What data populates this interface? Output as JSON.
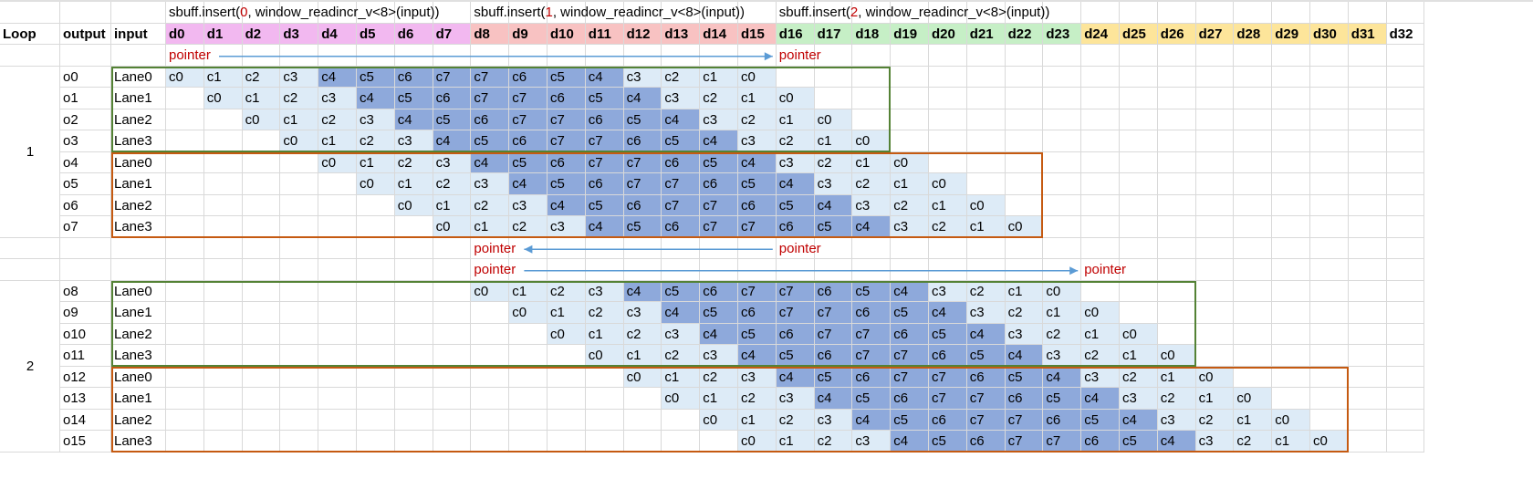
{
  "headers": {
    "loop": "Loop",
    "output": "output",
    "input": "input"
  },
  "columns": [
    "d0",
    "d1",
    "d2",
    "d3",
    "d4",
    "d5",
    "d6",
    "d7",
    "d8",
    "d9",
    "d10",
    "d11",
    "d12",
    "d13",
    "d14",
    "d15",
    "d16",
    "d17",
    "d18",
    "d19",
    "d20",
    "d21",
    "d22",
    "d23",
    "d24",
    "d25",
    "d26",
    "d27",
    "d28",
    "d29",
    "d30",
    "d31",
    "d32"
  ],
  "inserts": [
    {
      "prefix": "sbuff.insert(",
      "index": "0",
      "suffix": ", window_readincr_v<8>(input))",
      "start_col": 0
    },
    {
      "prefix": "sbuff.insert(",
      "index": "1",
      "suffix": ", window_readincr_v<8>(input))",
      "start_col": 8
    },
    {
      "prefix": "sbuff.insert(",
      "index": "2",
      "suffix": ", window_readincr_v<8>(input))",
      "start_col": 16
    }
  ],
  "pointer_label": "pointer",
  "pointer_rows": [
    {
      "labels_at_cols": [
        0,
        16
      ],
      "arrow": {
        "from_col": 0,
        "to_col": 16
      }
    },
    {
      "labels_at_cols": [
        8,
        16
      ],
      "arrow": {
        "from_col": 16,
        "to_col": 8
      }
    },
    {
      "labels_at_cols": [
        8,
        24
      ],
      "arrow": {
        "from_col": 8,
        "to_col": 24
      }
    }
  ],
  "loops": [
    {
      "label": "1",
      "rows": [
        {
          "output": "o0",
          "input": "Lane0",
          "start": 0
        },
        {
          "output": "o1",
          "input": "Lane1",
          "start": 1
        },
        {
          "output": "o2",
          "input": "Lane2",
          "start": 2
        },
        {
          "output": "o3",
          "input": "Lane3",
          "start": 3
        },
        {
          "output": "o4",
          "input": "Lane0",
          "start": 4
        },
        {
          "output": "o5",
          "input": "Lane1",
          "start": 5
        },
        {
          "output": "o6",
          "input": "Lane2",
          "start": 6
        },
        {
          "output": "o7",
          "input": "Lane3",
          "start": 7
        }
      ]
    },
    {
      "label": "2",
      "rows": [
        {
          "output": "o8",
          "input": "Lane0",
          "start": 8
        },
        {
          "output": "o9",
          "input": "Lane1",
          "start": 9
        },
        {
          "output": "o10",
          "input": "Lane2",
          "start": 10
        },
        {
          "output": "o11",
          "input": "Lane3",
          "start": 11
        },
        {
          "output": "o12",
          "input": "Lane0",
          "start": 12
        },
        {
          "output": "o13",
          "input": "Lane1",
          "start": 13
        },
        {
          "output": "o14",
          "input": "Lane2",
          "start": 14
        },
        {
          "output": "o15",
          "input": "Lane3",
          "start": 15
        }
      ]
    }
  ],
  "coef_sequence": [
    "c0",
    "c1",
    "c2",
    "c3",
    "c4",
    "c5",
    "c6",
    "c7",
    "c7",
    "c6",
    "c5",
    "c4",
    "c3",
    "c2",
    "c1",
    "c0"
  ],
  "colors": {
    "header_band_0": "#f2b8f0",
    "header_band_1": "#f8c2c2",
    "header_band_2": "#c6efc6",
    "header_band_3": "#fde59a",
    "light_cell": "#ddebf7",
    "dark_cell": "#8ea9db",
    "pointer_text": "#c00000",
    "insert_index": "#c00000",
    "arrow": "#5b9bd5",
    "box_green": "#548235",
    "box_orange": "#c55a11"
  }
}
